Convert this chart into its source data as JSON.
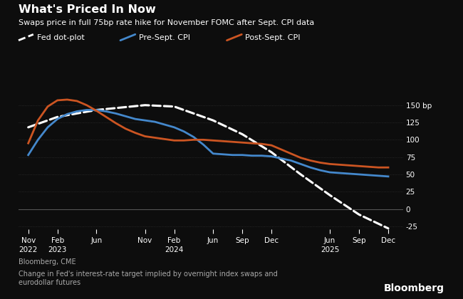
{
  "title": "What's Priced In Now",
  "subtitle": "Swaps price in full 75bp rate hike for November FOMC after Sept. CPI data",
  "footnote1": "Bloomberg, CME",
  "footnote2": "Change in Fed's interest-rate target implied by overnight index swaps and\neurodollar futures",
  "bloomberg_label": "Bloomberg",
  "background_color": "#0d0d0d",
  "text_color": "#ffffff",
  "yticks": [
    -25,
    0,
    25,
    50,
    75,
    100,
    125,
    150
  ],
  "xtick_labels": [
    "Nov\n2022",
    "Feb\n2023",
    "Jun",
    "Nov",
    "Feb\n2024",
    "Jun",
    "Sep",
    "Dec",
    "Jun\n2025",
    "Sep",
    "Dec"
  ],
  "x_positions": [
    0,
    3,
    7,
    12,
    15,
    19,
    22,
    25,
    31,
    34,
    37
  ],
  "dot_plot": {
    "x": [
      0,
      3,
      7,
      12,
      15,
      19,
      22,
      25,
      28,
      31,
      34,
      37
    ],
    "y": [
      118,
      133,
      143,
      150,
      148,
      128,
      108,
      82,
      50,
      20,
      -8,
      -28
    ],
    "color": "#ffffff",
    "style": "dashed",
    "linewidth": 2.2
  },
  "pre_sept": {
    "x": [
      0,
      1,
      2,
      3,
      4,
      5,
      6,
      7,
      8,
      9,
      10,
      11,
      12,
      13,
      14,
      15,
      16,
      17,
      18,
      19,
      20,
      21,
      22,
      23,
      24,
      25,
      26,
      27,
      28,
      29,
      30,
      31,
      32,
      33,
      34,
      35,
      36,
      37
    ],
    "y": [
      78,
      100,
      118,
      130,
      137,
      141,
      143,
      143,
      141,
      138,
      134,
      130,
      128,
      126,
      122,
      118,
      112,
      104,
      93,
      80,
      79,
      78,
      78,
      77,
      77,
      76,
      73,
      70,
      65,
      60,
      56,
      53,
      52,
      51,
      50,
      49,
      48,
      47
    ],
    "color": "#4488cc",
    "linewidth": 2.0
  },
  "post_sept": {
    "x": [
      0,
      1,
      2,
      3,
      4,
      5,
      6,
      7,
      8,
      9,
      10,
      11,
      12,
      13,
      14,
      15,
      16,
      17,
      18,
      19,
      20,
      21,
      22,
      23,
      24,
      25,
      26,
      27,
      28,
      29,
      30,
      31,
      32,
      33,
      34,
      35,
      36,
      37
    ],
    "y": [
      95,
      128,
      148,
      157,
      158,
      156,
      150,
      142,
      133,
      124,
      116,
      110,
      105,
      103,
      101,
      99,
      99,
      100,
      100,
      99,
      98,
      97,
      96,
      95,
      94,
      92,
      86,
      80,
      74,
      70,
      67,
      65,
      64,
      63,
      62,
      61,
      60,
      60
    ],
    "color": "#cc5522",
    "linewidth": 2.0
  },
  "legend": [
    {
      "label": "Fed dot-plot",
      "color": "#ffffff",
      "style": "dashed"
    },
    {
      "label": "Pre-Sept. CPI",
      "color": "#4488cc",
      "style": "solid"
    },
    {
      "label": "Post-Sept. CPI",
      "color": "#cc5522",
      "style": "solid"
    }
  ]
}
